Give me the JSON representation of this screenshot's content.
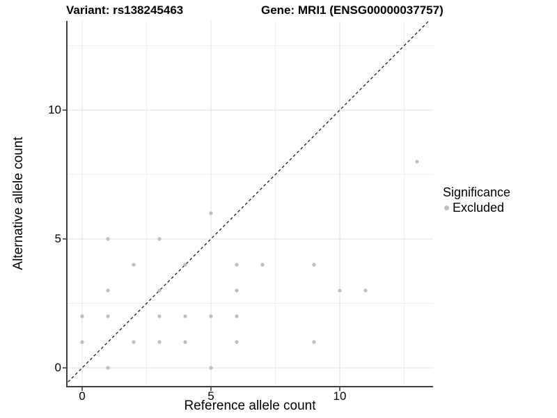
{
  "page": {
    "background": "#ffffff"
  },
  "chart_data": {
    "type": "scatter",
    "titles": {
      "left": "Variant: rs138245463",
      "right": "Gene: MRI1 (ENSG00000037757)"
    },
    "xlabel": "Reference allele count",
    "ylabel": "Alternative allele count",
    "x_ticks": [
      "0",
      "5",
      "10"
    ],
    "x_tick_values": [
      0,
      5,
      10
    ],
    "y_ticks": [
      "0",
      "5",
      "10"
    ],
    "y_tick_values": [
      0,
      5,
      10
    ],
    "x_minor_gridlines": [
      2.5,
      7.5,
      12.5
    ],
    "y_minor_gridlines": [
      2.5,
      7.5,
      12.5
    ],
    "xlim": [
      -0.6,
      13.6
    ],
    "ylim": [
      -0.73,
      13.46
    ],
    "grid": true,
    "legend": {
      "title": "Significance",
      "position": "right",
      "items": [
        {
          "label": "Excluded",
          "color": "#bdbdbd"
        }
      ]
    },
    "reference_line": {
      "type": "identity",
      "equation": "y = x",
      "style": "dashed",
      "color": "#1a1a1a"
    },
    "series": [
      {
        "name": "Excluded",
        "color": "#bdbdbd",
        "marker": "circle",
        "points": [
          [
            1,
            0
          ],
          [
            5,
            0
          ],
          [
            0,
            1
          ],
          [
            2,
            1
          ],
          [
            3,
            1
          ],
          [
            4,
            1
          ],
          [
            6,
            1
          ],
          [
            9,
            1
          ],
          [
            0,
            2
          ],
          [
            1,
            2
          ],
          [
            3,
            2
          ],
          [
            4,
            2
          ],
          [
            5,
            2
          ],
          [
            6,
            2
          ],
          [
            1,
            3
          ],
          [
            3,
            3
          ],
          [
            6,
            3
          ],
          [
            10,
            3
          ],
          [
            11,
            3
          ],
          [
            2,
            4
          ],
          [
            4,
            4
          ],
          [
            6,
            4
          ],
          [
            7,
            4
          ],
          [
            9,
            4
          ],
          [
            1,
            5
          ],
          [
            3,
            5
          ],
          [
            5,
            6
          ],
          [
            13,
            8
          ]
        ]
      }
    ],
    "colors": {
      "point": "#bdbdbd",
      "grid_major": "#e2e2e2",
      "grid_minor": "#f0f0f0",
      "axis_line": "#3f3f3f",
      "tick_mark": "#333333",
      "text": "#000000"
    }
  }
}
